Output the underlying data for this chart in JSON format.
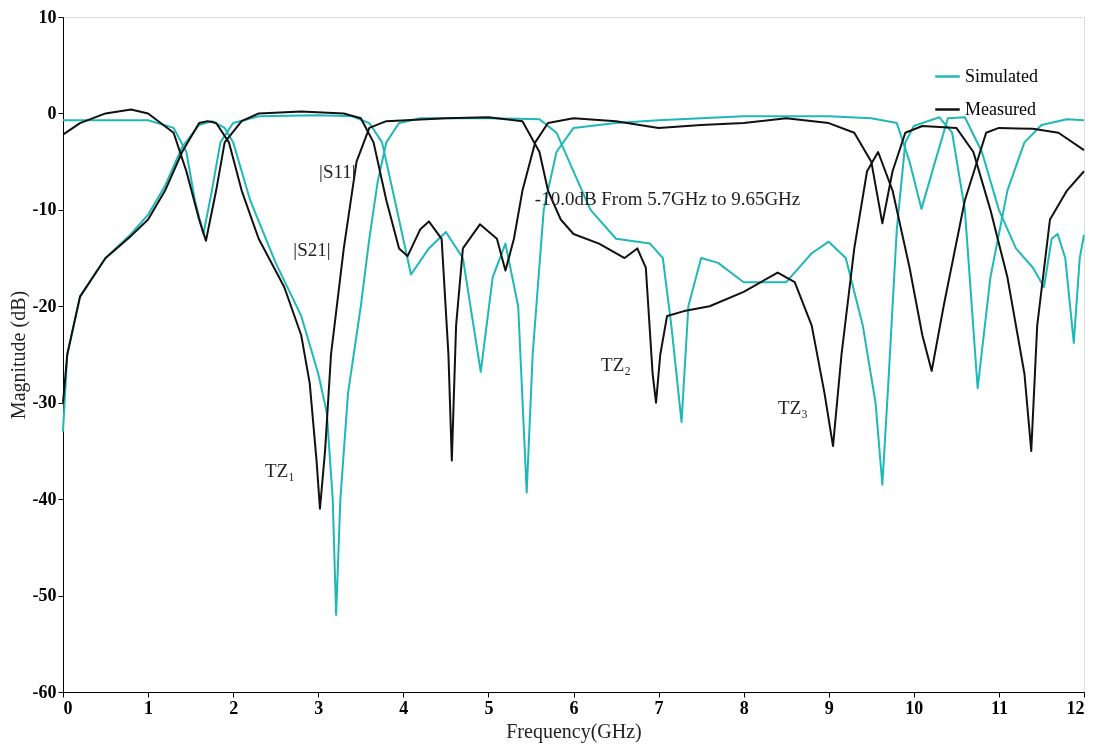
{
  "chart_data": {
    "type": "line",
    "xlabel": "Frequency(GHz)",
    "ylabel": "Magnitude (dB)",
    "xlim": [
      0,
      12
    ],
    "xticks": [
      {
        "value": 0,
        "label": "0"
      },
      {
        "value": 1,
        "label": "1"
      },
      {
        "value": 2,
        "label": "2"
      },
      {
        "value": 3,
        "label": "3"
      },
      {
        "value": 4,
        "label": "4"
      },
      {
        "value": 5,
        "label": "5"
      },
      {
        "value": 6,
        "label": "6"
      },
      {
        "value": 7,
        "label": "7"
      },
      {
        "value": 8,
        "label": "8"
      },
      {
        "value": 9,
        "label": "9"
      },
      {
        "value": 10,
        "label": "10"
      },
      {
        "value": 11,
        "label": "11"
      },
      {
        "value": 12,
        "label": "12"
      }
    ],
    "ylim": [
      -60,
      10
    ],
    "yticks": [
      -60,
      -50,
      -40,
      -30,
      -20,
      -10,
      0,
      10
    ],
    "grid": false,
    "legend": "top right",
    "marker": "none",
    "line_style": "solid",
    "series": [
      {
        "name": "Simulated",
        "color": "#1fb8b8",
        "x": [
          0,
          0.05,
          0.2,
          0.5,
          0.8,
          1.0,
          1.2,
          1.4,
          1.6,
          1.75,
          1.9,
          2.0,
          2.2,
          2.5,
          2.8,
          3.0,
          3.1,
          3.17,
          3.21,
          3.26,
          3.35,
          3.5,
          3.6,
          3.7,
          3.8,
          3.95,
          4.2,
          5.0,
          5.6,
          5.8,
          6.0,
          6.2,
          6.5,
          6.9,
          7.05,
          7.15,
          7.27,
          7.35,
          7.5,
          7.7,
          8.0,
          8.5,
          8.8,
          9.0,
          9.2,
          9.4,
          9.55,
          9.63,
          9.7,
          9.8,
          9.9,
          10.0,
          10.3,
          10.45,
          10.6,
          10.75,
          10.9,
          11.1,
          11.3,
          11.5,
          11.8,
          12
        ],
        "values": [
          -33,
          -25,
          -19,
          -15,
          -12.5,
          -10.5,
          -7.5,
          -3.5,
          -1.2,
          -0.8,
          -1.5,
          -3,
          -9,
          -15.5,
          -21,
          -27,
          -31,
          -40,
          -52,
          -40,
          -29,
          -20,
          -13,
          -7,
          -3,
          -1,
          -0.5,
          -0.5,
          -0.6,
          -2,
          -6,
          -10,
          -13,
          -13.5,
          -15,
          -22,
          -32,
          -20,
          -15,
          -15.5,
          -17.5,
          -17.5,
          -14.5,
          -13.3,
          -15,
          -22,
          -30,
          -38.5,
          -28,
          -12,
          -3,
          -1.3,
          -0.4,
          -2,
          -10,
          -28.5,
          -17,
          -8,
          -3,
          -1.2,
          -0.6,
          -0.7
        ]
      },
      {
        "color": "#1fb8b8",
        "x": [
          0,
          1.0,
          1.3,
          1.45,
          1.55,
          1.65,
          1.75,
          1.85,
          2.0,
          2.3,
          3.0,
          3.4,
          3.6,
          3.75,
          3.9,
          4.09,
          4.3,
          4.5,
          4.7,
          4.91,
          5.05,
          5.2,
          5.35,
          5.45,
          5.52,
          5.65,
          5.8,
          6.0,
          6.5,
          7.0,
          7.5,
          8.0,
          9.0,
          9.5,
          9.8,
          9.95,
          10.09,
          10.25,
          10.4,
          10.6,
          10.8,
          11.0,
          11.2,
          11.4,
          11.53,
          11.62,
          11.69,
          11.78,
          11.88,
          11.95,
          12
        ],
        "values": [
          -0.7,
          -0.7,
          -1.5,
          -4,
          -9,
          -12.5,
          -8,
          -3,
          -1,
          -0.3,
          -0.2,
          -0.3,
          -1,
          -3,
          -9,
          -16.7,
          -14,
          -12.3,
          -15,
          -26.8,
          -17,
          -13.5,
          -20,
          -39.3,
          -25,
          -10,
          -4,
          -1.5,
          -1,
          -0.7,
          -0.5,
          -0.3,
          -0.3,
          -0.5,
          -1,
          -5,
          -9.9,
          -5,
          -0.5,
          -0.4,
          -4,
          -10,
          -14,
          -16,
          -18,
          -13,
          -12.5,
          -15,
          -23.8,
          -15,
          -12.6
        ]
      },
      {
        "name": "Measured",
        "color": "#111111",
        "x": [
          0,
          0.05,
          0.2,
          0.5,
          0.8,
          1.0,
          1.2,
          1.4,
          1.6,
          1.7,
          1.8,
          1.95,
          2.1,
          2.3,
          2.6,
          2.8,
          2.9,
          2.98,
          3.02,
          3.08,
          3.15,
          3.3,
          3.45,
          3.6,
          3.8,
          4.5,
          5.0,
          5.4,
          5.6,
          5.7,
          5.85,
          6.0,
          6.3,
          6.6,
          6.75,
          6.85,
          6.93,
          6.97,
          7.02,
          7.1,
          7.3,
          7.6,
          8.0,
          8.4,
          8.6,
          8.8,
          8.95,
          9.05,
          9.15,
          9.3,
          9.45,
          9.58,
          9.75,
          9.95,
          10.1,
          10.21,
          10.35,
          10.6,
          10.85,
          11.0,
          11.4,
          11.7,
          12
        ],
        "values": [
          -30,
          -25,
          -19,
          -15,
          -12.7,
          -11,
          -8,
          -4,
          -1,
          -0.8,
          -1,
          -3,
          -8,
          -13,
          -18,
          -23,
          -28,
          -36,
          -41,
          -35,
          -25,
          -14,
          -5,
          -1.5,
          -0.8,
          -0.5,
          -0.4,
          -0.8,
          -4,
          -8,
          -11,
          -12.5,
          -13.5,
          -15,
          -14,
          -16,
          -27,
          -30,
          -25,
          -21,
          -20.5,
          -20,
          -18.5,
          -16.5,
          -17.5,
          -22,
          -29,
          -34.5,
          -25,
          -14,
          -6,
          -4,
          -8,
          -16,
          -23,
          -26.7,
          -20,
          -9,
          -2,
          -1.5,
          -1.6,
          -2,
          -3.8
        ]
      },
      {
        "color": "#111111",
        "x": [
          0,
          0.2,
          0.5,
          0.8,
          1.0,
          1.3,
          1.45,
          1.6,
          1.68,
          1.8,
          1.9,
          2.1,
          2.3,
          2.8,
          3.3,
          3.5,
          3.65,
          3.8,
          3.95,
          4.05,
          4.2,
          4.3,
          4.45,
          4.53,
          4.57,
          4.62,
          4.7,
          4.9,
          5.1,
          5.2,
          5.3,
          5.4,
          5.55,
          5.7,
          6.0,
          6.5,
          7.0,
          7.5,
          8.0,
          8.5,
          9.0,
          9.3,
          9.5,
          9.63,
          9.75,
          9.9,
          10.1,
          10.5,
          10.7,
          10.9,
          11.1,
          11.3,
          11.38,
          11.45,
          11.6,
          11.8,
          12
        ],
        "values": [
          -2.2,
          -1,
          0,
          0.4,
          0,
          -2,
          -6,
          -11,
          -13.2,
          -8,
          -3,
          -0.8,
          0,
          0.2,
          0,
          -0.5,
          -3,
          -9,
          -14,
          -14.8,
          -12,
          -11.2,
          -13,
          -25,
          -36,
          -22,
          -14,
          -11.5,
          -13,
          -16.3,
          -13,
          -8,
          -3,
          -1,
          -0.5,
          -0.8,
          -1.5,
          -1.2,
          -1,
          -0.5,
          -1,
          -2,
          -5,
          -11.4,
          -6,
          -2,
          -1.3,
          -1.5,
          -4,
          -10,
          -17,
          -27,
          -35,
          -22,
          -11,
          -8,
          -6
        ]
      }
    ],
    "annotations": [
      "|S11|",
      "|S21|",
      "-10.0dB From 5.7GHz to 9.65GHz",
      {
        "text": "TZ₁",
        "x": 3.02,
        "y": -41
      },
      {
        "text": "TZ₂",
        "x": 6.97,
        "y": -30
      },
      {
        "text": "TZ₃",
        "x": 9.05,
        "y": -34.5
      }
    ]
  }
}
